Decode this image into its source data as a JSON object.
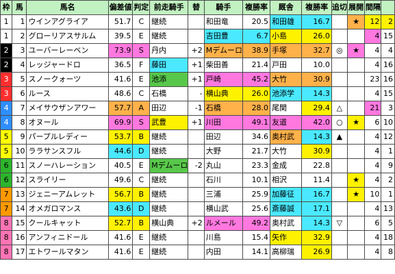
{
  "headers": [
    "枠",
    "馬",
    "馬名",
    "偏差値",
    "判定",
    "前走騎手",
    "替",
    "騎手",
    "複勝率",
    "厩舎",
    "複勝率",
    "追切",
    "展開",
    "間隔",
    ""
  ],
  "rows": [
    {
      "waku": "1",
      "waku_bg": "#ffffff",
      "waku_fg": "#000000",
      "uma": "1",
      "name": "ウインアグライア",
      "hensa": "51.7",
      "hantei": "C",
      "hensa_bg": "",
      "zenso": "継続",
      "zenso_bg": "",
      "kae": "",
      "jockey": "和田竜",
      "jockey_bg": "",
      "jrate": "20.5",
      "stable": "和田雄",
      "stable_bg": "c",
      "srate": "16.7",
      "srate_bg": "c",
      "oikiri": "",
      "tenkai": "★",
      "tenkai_bg": "o",
      "kankaku": "12",
      "kankaku_bg": "y",
      "last": "2",
      "last_bg": "y"
    },
    {
      "waku": "1",
      "waku_bg": "#ffffff",
      "waku_fg": "#000000",
      "uma": "2",
      "name": "グローリアスサルム",
      "hensa": "39.5",
      "hantei": "E",
      "hensa_bg": "",
      "zenso": "継続",
      "zenso_bg": "",
      "kae": "",
      "jockey": "吉田豊",
      "jockey_bg": "c",
      "jrate": "6.7",
      "stable": "小島",
      "stable_bg": "y",
      "srate": "26.0",
      "srate_bg": "y",
      "oikiri": "",
      "tenkai": "",
      "tenkai_bg": "",
      "kankaku": "4",
      "kankaku_bg": "p",
      "last": "15",
      "last_bg": ""
    },
    {
      "waku": "2",
      "waku_bg": "#000000",
      "waku_fg": "#ffffff",
      "uma": "3",
      "name": "ユーバーレーベン",
      "hensa": "73.9",
      "hantei": "S",
      "hensa_bg": "p",
      "zenso": "丹内",
      "zenso_bg": "",
      "kae": "+2",
      "jockey": "Mデムーロ",
      "jockey_bg": "o",
      "jrate": "38.9",
      "stable": "手塚",
      "stable_bg": "o",
      "srate": "32.7",
      "srate_bg": "o",
      "oikiri": "◎",
      "tenkai": "★",
      "tenkai_bg": "p",
      "kankaku": "4",
      "kankaku_bg": "",
      "last": "4",
      "last_bg": ""
    },
    {
      "waku": "2",
      "waku_bg": "#000000",
      "waku_fg": "#ffffff",
      "uma": "4",
      "name": "レッジャードロ",
      "hensa": "36.5",
      "hantei": "F",
      "hensa_bg": "",
      "zenso": "藤田",
      "zenso_bg": "c",
      "kae": "+1",
      "jockey": "柴田善",
      "jockey_bg": "",
      "jrate": "21.4",
      "stable": "戸田",
      "stable_bg": "",
      "srate": "10.0",
      "srate_bg": "",
      "oikiri": "",
      "tenkai": "",
      "tenkai_bg": "",
      "kankaku": "4",
      "kankaku_bg": "",
      "last": "16",
      "last_bg": ""
    },
    {
      "waku": "3",
      "waku_bg": "#ff2e2e",
      "waku_fg": "#ffffff",
      "uma": "5",
      "name": "スノークォーツ",
      "hensa": "41.6",
      "hantei": "E",
      "hensa_bg": "",
      "zenso": "池添",
      "zenso_bg": "g",
      "kae": "+1",
      "jockey": "戸崎",
      "jockey_bg": "p",
      "jrate": "45.2",
      "stable": "大竹",
      "stable_bg": "o",
      "srate": "30.9",
      "srate_bg": "o",
      "oikiri": "",
      "tenkai": "",
      "tenkai_bg": "",
      "kankaku": "23",
      "kankaku_bg": "",
      "last": "16",
      "last_bg": ""
    },
    {
      "waku": "3",
      "waku_bg": "#ff2e2e",
      "waku_fg": "#ffffff",
      "uma": "6",
      "name": "ルース",
      "hensa": "48.6",
      "hantei": "C",
      "hensa_bg": "",
      "zenso": "石橋",
      "zenso_bg": "",
      "kae": "-",
      "jockey": "横山典",
      "jockey_bg": "y",
      "jrate": "26.0",
      "stable": "池添学",
      "stable_bg": "c",
      "srate": "14.3",
      "srate_bg": "c",
      "oikiri": "",
      "tenkai": "",
      "tenkai_bg": "",
      "kankaku": "4",
      "kankaku_bg": "",
      "last": "15",
      "last_bg": ""
    },
    {
      "waku": "4",
      "waku_bg": "#2e8eff",
      "waku_fg": "#ffffff",
      "uma": "7",
      "name": "メイサウザンアワー",
      "hensa": "57.7",
      "hantei": "A",
      "hensa_bg": "o",
      "zenso": "田辺",
      "zenso_bg": "",
      "kae": "-1",
      "jockey": "石橋",
      "jockey_bg": "o",
      "jrate": "28.0",
      "stable": "尾関",
      "stable_bg": "",
      "srate": "29.4",
      "srate_bg": "y",
      "oikiri": "△",
      "tenkai": "",
      "tenkai_bg": "",
      "kankaku": "21",
      "kankaku_bg": "p",
      "last": "3",
      "last_bg": ""
    },
    {
      "waku": "4",
      "waku_bg": "#2e8eff",
      "waku_fg": "#ffffff",
      "uma": "8",
      "name": "オヌール",
      "hensa": "69.9",
      "hantei": "S",
      "hensa_bg": "p",
      "zenso": "武豊",
      "zenso_bg": "y",
      "kae": "+1",
      "jockey": "川田",
      "jockey_bg": "p",
      "jrate": "49.1",
      "stable": "友道",
      "stable_bg": "p",
      "srate": "42.0",
      "srate_bg": "p",
      "oikiri": "○",
      "tenkai": "★",
      "tenkai_bg": "y",
      "kankaku": "6",
      "kankaku_bg": "",
      "last": "10",
      "last_bg": ""
    },
    {
      "waku": "5",
      "waku_bg": "#ffff00",
      "waku_fg": "#000000",
      "uma": "9",
      "name": "パープルレディー",
      "hensa": "53.7",
      "hantei": "B",
      "hensa_bg": "y",
      "zenso": "継続",
      "zenso_bg": "",
      "kae": "",
      "jockey": "田辺",
      "jockey_bg": "",
      "jrate": "34.6",
      "stable": "奥村武",
      "stable_bg": "o",
      "srate": "14.3",
      "srate_bg": "c",
      "oikiri": "▲",
      "tenkai": "",
      "tenkai_bg": "",
      "kankaku": "4",
      "kankaku_bg": "",
      "last": "12",
      "last_bg": ""
    },
    {
      "waku": "5",
      "waku_bg": "#ffff00",
      "waku_fg": "#000000",
      "uma": "10",
      "name": "ララサンスフル",
      "hensa": "44.6",
      "hantei": "D",
      "hensa_bg": "c",
      "zenso": "継続",
      "zenso_bg": "",
      "kae": "",
      "jockey": "大野",
      "jockey_bg": "",
      "jrate": "21.7",
      "stable": "大竹",
      "stable_bg": "",
      "srate": "30.9",
      "srate_bg": "y",
      "oikiri": "",
      "tenkai": "",
      "tenkai_bg": "",
      "kankaku": "4",
      "kankaku_bg": "",
      "last": "1",
      "last_bg": ""
    },
    {
      "waku": "6",
      "waku_bg": "#2cb52c",
      "waku_fg": "#000000",
      "uma": "11",
      "name": "スノーハレーション",
      "hensa": "40.5",
      "hantei": "E",
      "hensa_bg": "",
      "zenso": "Mデムーロ",
      "zenso_bg": "g",
      "kae": "-2",
      "jockey": "丸山",
      "jockey_bg": "",
      "jrate": "23.3",
      "stable": "金成",
      "stable_bg": "",
      "srate": "22.8",
      "srate_bg": "",
      "oikiri": "",
      "tenkai": "",
      "tenkai_bg": "",
      "kankaku": "4",
      "kankaku_bg": "",
      "last": "9",
      "last_bg": ""
    },
    {
      "waku": "6",
      "waku_bg": "#2cb52c",
      "waku_fg": "#000000",
      "uma": "12",
      "name": "スライリー",
      "hensa": "49.6",
      "hantei": "C",
      "hensa_bg": "",
      "zenso": "継続",
      "zenso_bg": "",
      "kae": "",
      "jockey": "石川",
      "jockey_bg": "",
      "jrate": "10.1",
      "stable": "相沢",
      "stable_bg": "",
      "srate": "11.4",
      "srate_bg": "",
      "oikiri": "",
      "tenkai": "★",
      "tenkai_bg": "y",
      "kankaku": "4",
      "kankaku_bg": "",
      "last": "2",
      "last_bg": ""
    },
    {
      "waku": "7",
      "waku_bg": "#ff9900",
      "waku_fg": "#000000",
      "uma": "13",
      "name": "ジェニーアムレット",
      "hensa": "56.7",
      "hantei": "B",
      "hensa_bg": "y",
      "zenso": "継続",
      "zenso_bg": "",
      "kae": "",
      "jockey": "三浦",
      "jockey_bg": "",
      "jrate": "25.9",
      "stable": "加藤征",
      "stable_bg": "c",
      "srate": "16.7",
      "srate_bg": "c",
      "oikiri": "",
      "tenkai": "★",
      "tenkai_bg": "y",
      "kankaku": "10",
      "kankaku_bg": "",
      "last": "1",
      "last_bg": ""
    },
    {
      "waku": "7",
      "waku_bg": "#ff9900",
      "waku_fg": "#000000",
      "uma": "14",
      "name": "オメガロマンス",
      "hensa": "43.6",
      "hantei": "D",
      "hensa_bg": "c",
      "zenso": "継続",
      "zenso_bg": "",
      "kae": "",
      "jockey": "横山武",
      "jockey_bg": "",
      "jrate": "25.6",
      "stable": "斎藤誠",
      "stable_bg": "c",
      "srate": "17.1",
      "srate_bg": "c",
      "oikiri": "",
      "tenkai": "",
      "tenkai_bg": "",
      "kankaku": "4",
      "kankaku_bg": "",
      "last": "13",
      "last_bg": ""
    },
    {
      "waku": "8",
      "waku_bg": "#ff73b4",
      "waku_fg": "#000000",
      "uma": "15",
      "name": "クールキャット",
      "hensa": "52.7",
      "hantei": "B",
      "hensa_bg": "y",
      "zenso": "横山典",
      "zenso_bg": "",
      "kae": "+2",
      "jockey": "ルメール",
      "jockey_bg": "p",
      "jrate": "49.2",
      "stable": "奥村武",
      "stable_bg": "",
      "srate": "14.3",
      "srate_bg": "c",
      "oikiri": "▽",
      "tenkai": "",
      "tenkai_bg": "",
      "kankaku": "6",
      "kankaku_bg": "",
      "last": "5",
      "last_bg": ""
    },
    {
      "waku": "8",
      "waku_bg": "#ff73b4",
      "waku_fg": "#000000",
      "uma": "16",
      "name": "アンフィニドール",
      "hensa": "41.6",
      "hantei": "E",
      "hensa_bg": "",
      "zenso": "継続",
      "zenso_bg": "",
      "kae": "",
      "jockey": "川島",
      "jockey_bg": "",
      "jrate": "15.4",
      "stable": "矢作",
      "stable_bg": "y",
      "srate": "32.9",
      "srate_bg": "y",
      "oikiri": "",
      "tenkai": "",
      "tenkai_bg": "",
      "kankaku": "4",
      "kankaku_bg": "",
      "last": "18",
      "last_bg": ""
    },
    {
      "waku": "8",
      "waku_bg": "#ff73b4",
      "waku_fg": "#000000",
      "uma": "17",
      "name": "エトワールマタン",
      "hensa": "41.6",
      "hantei": "E",
      "hensa_bg": "",
      "zenso": "継続",
      "zenso_bg": "",
      "kae": "",
      "jockey": "内田",
      "jockey_bg": "",
      "jrate": "14.1",
      "stable": "高柳瑞",
      "stable_bg": "",
      "srate": "26.9",
      "srate_bg": "y",
      "oikiri": "",
      "tenkai": "",
      "tenkai_bg": "",
      "kankaku": "4",
      "kankaku_bg": "",
      "last": "8",
      "last_bg": ""
    }
  ]
}
